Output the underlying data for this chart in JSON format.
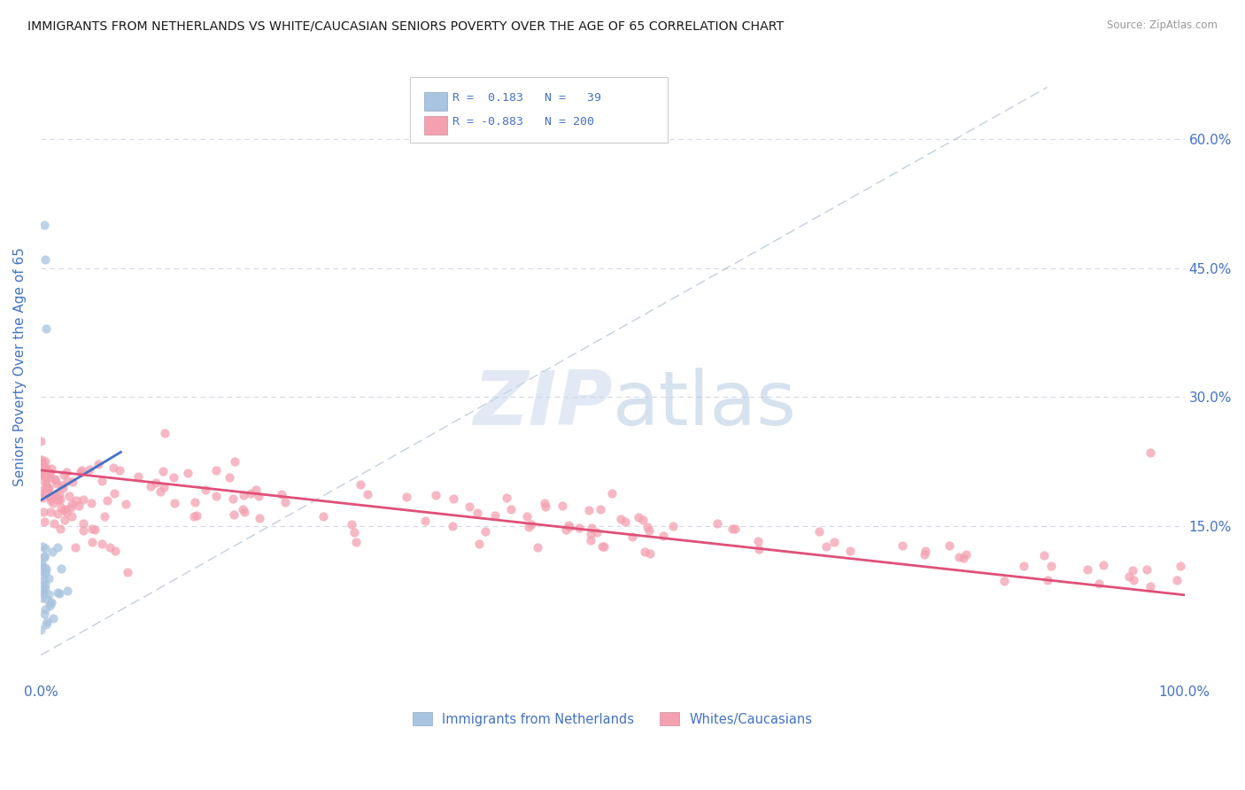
{
  "title": "IMMIGRANTS FROM NETHERLANDS VS WHITE/CAUCASIAN SENIORS POVERTY OVER THE AGE OF 65 CORRELATION CHART",
  "source": "Source: ZipAtlas.com",
  "ylabel": "Seniors Poverty Over the Age of 65",
  "legend_r1": "R =  0.183",
  "legend_n1": "N =  39",
  "legend_r2": "R = -0.883",
  "legend_n2": "N = 200",
  "color_blue": "#a8c4e0",
  "color_pink": "#f4a0b0",
  "color_blue_line": "#4472c4",
  "color_pink_line": "#e05078",
  "color_blue_text": "#4472c4",
  "color_dashed_line": "#b8c8d8",
  "background_color": "#ffffff",
  "grid_color": "#d0d8e8"
}
